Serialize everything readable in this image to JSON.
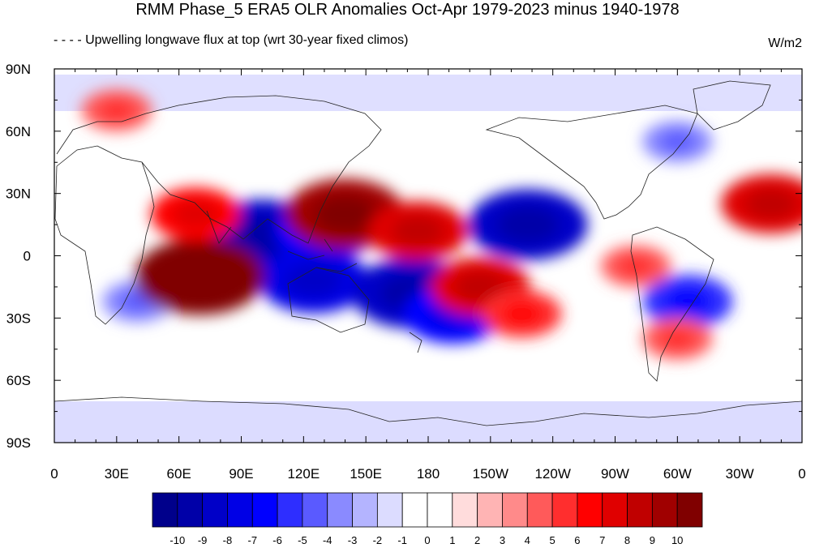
{
  "title": "RMM Phase_5 ERA5 OLR Anomalies Oct-Apr 1979-2023 minus 1940-1978",
  "subtitle": "- - - - Upwelling longwave flux at top  (wrt 30-year fixed climos)",
  "units": "W/m2",
  "lat_labels": [
    "90N",
    "60N",
    "30N",
    "0",
    "30S",
    "60S",
    "90S"
  ],
  "lon_labels": [
    "0",
    "30E",
    "60E",
    "90E",
    "120E",
    "150E",
    "180",
    "150W",
    "120W",
    "90W",
    "60W",
    "30W",
    "0"
  ],
  "colorbar": {
    "labels": [
      "-10",
      "-9",
      "-8",
      "-7",
      "-6",
      "-5",
      "-4",
      "-3",
      "-2",
      "-1",
      "0",
      "1",
      "2",
      "3",
      "4",
      "5",
      "6",
      "7",
      "8",
      "9",
      "10"
    ],
    "colors": [
      "#00008b",
      "#0000a8",
      "#0000c8",
      "#0000e6",
      "#0000ff",
      "#2e2eff",
      "#5a5aff",
      "#8a8aff",
      "#b4b4ff",
      "#dcdcff",
      "#ffffff",
      "#ffffff",
      "#ffdcdc",
      "#ffb4b4",
      "#ff8a8a",
      "#ff5a5a",
      "#ff2e2e",
      "#ff0000",
      "#e00000",
      "#c00000",
      "#a00000",
      "#800000"
    ]
  },
  "anomaly_blobs": [
    {
      "lon": 100,
      "lat": 10,
      "value": -9
    },
    {
      "lon": 130,
      "lat": 12,
      "value": -7
    },
    {
      "lon": 125,
      "lat": -12,
      "value": -8
    },
    {
      "lon": 172,
      "lat": -18,
      "value": -9
    },
    {
      "lon": 228,
      "lat": 15,
      "value": -9
    },
    {
      "lon": 192,
      "lat": -28,
      "value": -7
    },
    {
      "lon": 305,
      "lat": -22,
      "value": -6
    },
    {
      "lon": 40,
      "lat": -22,
      "value": -4
    },
    {
      "lon": 70,
      "lat": -10,
      "value": 10
    },
    {
      "lon": 68,
      "lat": 20,
      "value": 6
    },
    {
      "lon": 140,
      "lat": 20,
      "value": 9
    },
    {
      "lon": 175,
      "lat": 12,
      "value": 7
    },
    {
      "lon": 205,
      "lat": -15,
      "value": 7
    },
    {
      "lon": 225,
      "lat": -28,
      "value": 5
    },
    {
      "lon": 345,
      "lat": 25,
      "value": 7
    },
    {
      "lon": 280,
      "lat": -5,
      "value": 4
    },
    {
      "lon": 300,
      "lat": -40,
      "value": 4
    },
    {
      "lon": 30,
      "lat": 70,
      "value": 4
    },
    {
      "lon": 300,
      "lat": 55,
      "value": -4
    }
  ]
}
